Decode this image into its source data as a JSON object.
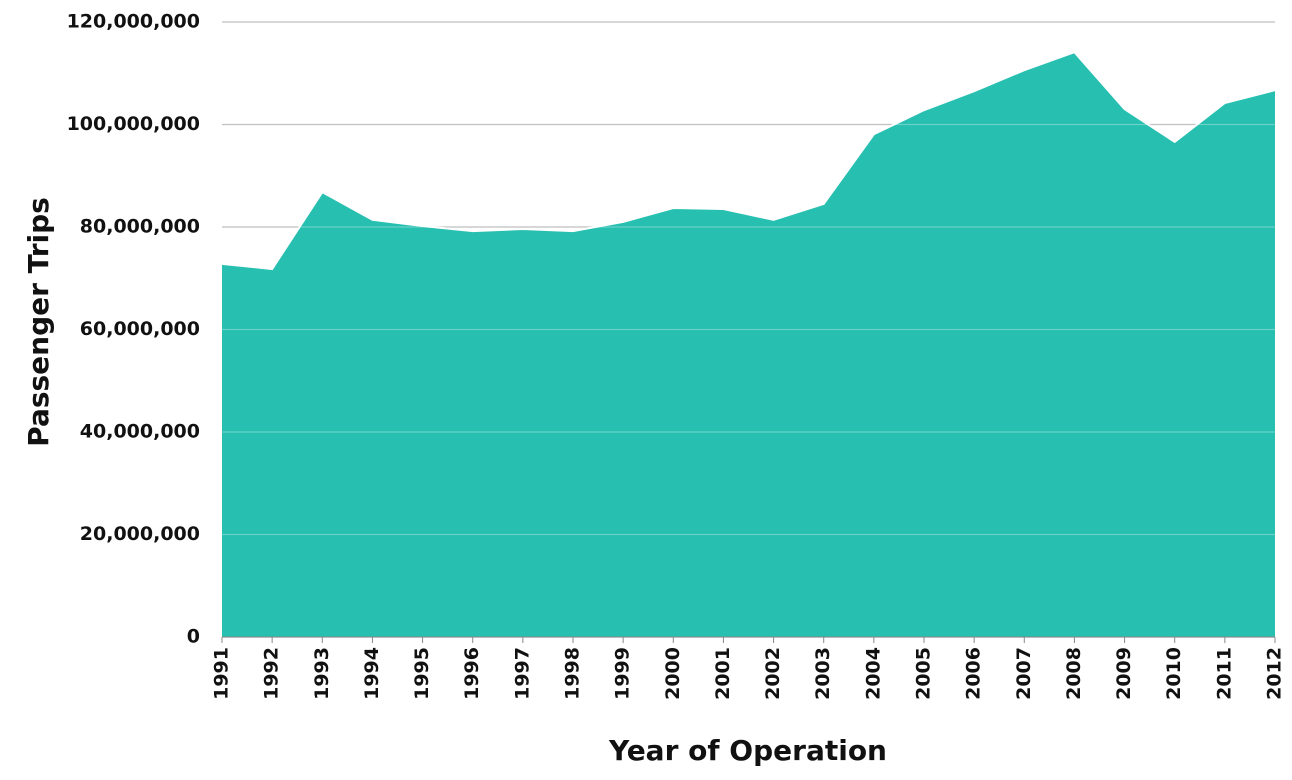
{
  "chart_data": {
    "type": "area",
    "xlabel": "Year of Operation",
    "ylabel": "Passenger Trips",
    "x": [
      1991,
      1992,
      1993,
      1994,
      1995,
      1996,
      1997,
      1998,
      1999,
      2000,
      2001,
      2002,
      2003,
      2004,
      2005,
      2006,
      2007,
      2008,
      2009,
      2010,
      2011,
      2012
    ],
    "values": [
      72800000,
      71800000,
      86800000,
      81400000,
      80200000,
      79200000,
      79600000,
      79200000,
      81000000,
      83700000,
      83500000,
      81400000,
      84500000,
      98100000,
      102800000,
      106500000,
      110600000,
      114100000,
      103000000,
      96600000,
      104200000,
      106700000
    ],
    "color": "#26bfb0",
    "xlim": [
      1991,
      2012
    ],
    "xticks": [
      1991,
      1992,
      1993,
      1994,
      1995,
      1996,
      1997,
      1998,
      1999,
      2000,
      2001,
      2002,
      2003,
      2004,
      2005,
      2006,
      2007,
      2008,
      2009,
      2010,
      2011,
      2012
    ],
    "ylim": [
      0,
      120000000
    ],
    "yticks": [
      0,
      {
        "value": 20000000,
        "label": "20,000,000"
      },
      {
        "value": 40000000,
        "label": "40,000,000"
      },
      {
        "value": 60000000,
        "label": "60,000,000"
      },
      {
        "value": 80000000,
        "label": "80,000,000"
      },
      {
        "value": 100000000,
        "label": "100,000,000"
      },
      {
        "value": 120000000,
        "label": "120,000,000"
      }
    ],
    "grid": true
  }
}
